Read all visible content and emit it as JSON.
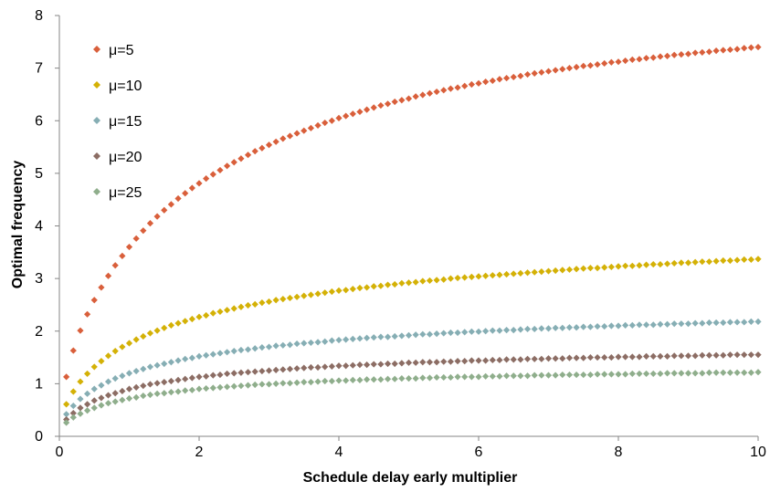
{
  "chart_data": {
    "type": "scatter",
    "title": "",
    "xlabel": "Schedule delay early multiplier",
    "ylabel": "Optimal frequency",
    "xlim": [
      0,
      10
    ],
    "ylim": [
      0,
      8
    ],
    "x_ticks": [
      "0",
      "2",
      "4",
      "6",
      "8",
      "10"
    ],
    "y_ticks": [
      "0",
      "1",
      "2",
      "3",
      "4",
      "5",
      "6",
      "7",
      "8"
    ],
    "grid": false,
    "legend_position": "top-left",
    "marker": "diamond",
    "x": [
      0.1,
      0.2,
      0.3,
      0.4,
      0.5,
      0.6,
      0.7,
      0.8,
      0.9,
      1.0,
      1.1,
      1.2,
      1.3,
      1.4,
      1.5,
      1.6,
      1.7,
      1.8,
      1.9,
      2.0,
      2.1,
      2.2,
      2.3,
      2.4,
      2.5,
      2.6,
      2.7,
      2.8,
      2.9,
      3.0,
      3.1,
      3.2,
      3.3,
      3.4,
      3.5,
      3.6,
      3.7,
      3.8,
      3.9,
      4.0,
      4.1,
      4.2,
      4.3,
      4.4,
      4.5,
      4.6,
      4.7,
      4.8,
      4.9,
      5.0,
      5.1,
      5.2,
      5.3,
      5.4,
      5.5,
      5.6,
      5.7,
      5.8,
      5.9,
      6.0,
      6.1,
      6.2,
      6.3,
      6.4,
      6.5,
      6.6,
      6.7,
      6.8,
      6.9,
      7.0,
      7.1,
      7.2,
      7.3,
      7.4,
      7.5,
      7.6,
      7.7,
      7.8,
      7.9,
      8.0,
      8.1,
      8.2,
      8.3,
      8.4,
      8.5,
      8.6,
      8.7,
      8.8,
      8.9,
      9.0,
      9.1,
      9.2,
      9.3,
      9.4,
      9.5,
      9.6,
      9.7,
      9.8,
      9.9,
      10.0
    ],
    "series": [
      {
        "name": "μ=5",
        "color": "#d95f3b",
        "values": [
          1.13,
          1.63,
          2.01,
          2.32,
          2.59,
          2.83,
          3.05,
          3.25,
          3.43,
          3.6,
          3.76,
          3.91,
          4.05,
          4.18,
          4.3,
          4.41,
          4.52,
          4.62,
          4.72,
          4.81,
          4.9,
          4.98,
          5.06,
          5.14,
          5.21,
          5.28,
          5.35,
          5.42,
          5.48,
          5.54,
          5.6,
          5.66,
          5.71,
          5.76,
          5.81,
          5.86,
          5.91,
          5.96,
          6.0,
          6.05,
          6.09,
          6.13,
          6.17,
          6.21,
          6.25,
          6.29,
          6.32,
          6.36,
          6.39,
          6.42,
          6.46,
          6.49,
          6.52,
          6.55,
          6.58,
          6.61,
          6.63,
          6.66,
          6.69,
          6.71,
          6.74,
          6.76,
          6.79,
          6.81,
          6.83,
          6.85,
          6.88,
          6.9,
          6.92,
          6.94,
          6.96,
          6.98,
          7.0,
          7.02,
          7.04,
          7.05,
          7.07,
          7.09,
          7.11,
          7.12,
          7.14,
          7.16,
          7.17,
          7.19,
          7.2,
          7.22,
          7.23,
          7.25,
          7.26,
          7.27,
          7.29,
          7.3,
          7.31,
          7.33,
          7.34,
          7.35,
          7.36,
          7.38,
          7.39,
          7.4
        ]
      },
      {
        "name": "μ=10",
        "color": "#d4b106",
        "values": [
          0.61,
          0.85,
          1.04,
          1.19,
          1.32,
          1.43,
          1.53,
          1.62,
          1.7,
          1.77,
          1.84,
          1.9,
          1.96,
          2.01,
          2.06,
          2.11,
          2.15,
          2.19,
          2.23,
          2.27,
          2.3,
          2.34,
          2.37,
          2.4,
          2.43,
          2.46,
          2.49,
          2.51,
          2.54,
          2.56,
          2.59,
          2.61,
          2.63,
          2.65,
          2.67,
          2.69,
          2.71,
          2.73,
          2.75,
          2.77,
          2.78,
          2.8,
          2.82,
          2.83,
          2.85,
          2.86,
          2.88,
          2.89,
          2.91,
          2.92,
          2.93,
          2.95,
          2.96,
          2.97,
          2.98,
          3.0,
          3.01,
          3.02,
          3.03,
          3.04,
          3.05,
          3.06,
          3.07,
          3.08,
          3.09,
          3.1,
          3.11,
          3.12,
          3.13,
          3.14,
          3.15,
          3.16,
          3.17,
          3.18,
          3.19,
          3.2,
          3.2,
          3.21,
          3.22,
          3.23,
          3.24,
          3.24,
          3.25,
          3.26,
          3.27,
          3.27,
          3.28,
          3.29,
          3.3,
          3.3,
          3.31,
          3.32,
          3.32,
          3.33,
          3.34,
          3.34,
          3.35,
          3.36,
          3.36,
          3.37
        ]
      },
      {
        "name": "μ=15",
        "color": "#86aeb4",
        "values": [
          0.42,
          0.58,
          0.71,
          0.81,
          0.9,
          0.97,
          1.04,
          1.1,
          1.15,
          1.2,
          1.24,
          1.28,
          1.32,
          1.35,
          1.38,
          1.41,
          1.44,
          1.47,
          1.49,
          1.52,
          1.54,
          1.56,
          1.58,
          1.6,
          1.62,
          1.64,
          1.65,
          1.67,
          1.69,
          1.7,
          1.72,
          1.73,
          1.74,
          1.76,
          1.77,
          1.78,
          1.79,
          1.8,
          1.82,
          1.83,
          1.84,
          1.85,
          1.86,
          1.87,
          1.88,
          1.89,
          1.89,
          1.9,
          1.91,
          1.92,
          1.93,
          1.94,
          1.94,
          1.95,
          1.96,
          1.97,
          1.97,
          1.98,
          1.99,
          1.99,
          2.0,
          2.01,
          2.01,
          2.02,
          2.02,
          2.03,
          2.04,
          2.04,
          2.05,
          2.05,
          2.06,
          2.06,
          2.07,
          2.07,
          2.08,
          2.08,
          2.09,
          2.09,
          2.1,
          2.1,
          2.11,
          2.11,
          2.12,
          2.12,
          2.12,
          2.13,
          2.13,
          2.14,
          2.14,
          2.14,
          2.15,
          2.15,
          2.16,
          2.16,
          2.16,
          2.17,
          2.17,
          2.17,
          2.18,
          2.18
        ]
      },
      {
        "name": "μ=20",
        "color": "#8c6d64",
        "values": [
          0.32,
          0.44,
          0.54,
          0.61,
          0.68,
          0.73,
          0.78,
          0.82,
          0.86,
          0.9,
          0.93,
          0.96,
          0.99,
          1.01,
          1.03,
          1.05,
          1.07,
          1.09,
          1.11,
          1.13,
          1.14,
          1.16,
          1.17,
          1.19,
          1.2,
          1.21,
          1.22,
          1.23,
          1.24,
          1.25,
          1.26,
          1.27,
          1.28,
          1.29,
          1.3,
          1.31,
          1.31,
          1.32,
          1.33,
          1.34,
          1.34,
          1.35,
          1.36,
          1.36,
          1.37,
          1.37,
          1.38,
          1.38,
          1.39,
          1.4,
          1.4,
          1.41,
          1.41,
          1.41,
          1.42,
          1.42,
          1.43,
          1.43,
          1.44,
          1.44,
          1.44,
          1.45,
          1.45,
          1.46,
          1.46,
          1.46,
          1.47,
          1.47,
          1.47,
          1.48,
          1.48,
          1.48,
          1.49,
          1.49,
          1.49,
          1.5,
          1.5,
          1.5,
          1.5,
          1.51,
          1.51,
          1.51,
          1.51,
          1.52,
          1.52,
          1.52,
          1.52,
          1.53,
          1.53,
          1.53,
          1.53,
          1.54,
          1.54,
          1.54,
          1.54,
          1.55,
          1.55,
          1.55,
          1.55,
          1.55
        ]
      },
      {
        "name": "μ=25",
        "color": "#8fae8c",
        "values": [
          0.26,
          0.36,
          0.43,
          0.49,
          0.54,
          0.59,
          0.63,
          0.66,
          0.69,
          0.72,
          0.74,
          0.77,
          0.79,
          0.81,
          0.82,
          0.84,
          0.85,
          0.87,
          0.88,
          0.9,
          0.91,
          0.92,
          0.93,
          0.94,
          0.95,
          0.96,
          0.97,
          0.98,
          0.99,
          0.99,
          1.0,
          1.01,
          1.01,
          1.02,
          1.03,
          1.03,
          1.04,
          1.05,
          1.05,
          1.06,
          1.06,
          1.07,
          1.07,
          1.08,
          1.08,
          1.08,
          1.09,
          1.09,
          1.1,
          1.1,
          1.1,
          1.11,
          1.11,
          1.12,
          1.12,
          1.12,
          1.13,
          1.13,
          1.13,
          1.13,
          1.14,
          1.14,
          1.14,
          1.15,
          1.15,
          1.15,
          1.15,
          1.16,
          1.16,
          1.16,
          1.16,
          1.17,
          1.17,
          1.17,
          1.17,
          1.17,
          1.18,
          1.18,
          1.18,
          1.18,
          1.18,
          1.19,
          1.19,
          1.19,
          1.19,
          1.19,
          1.2,
          1.2,
          1.2,
          1.2,
          1.2,
          1.2,
          1.21,
          1.21,
          1.21,
          1.21,
          1.21,
          1.21,
          1.21,
          1.22
        ]
      }
    ]
  }
}
